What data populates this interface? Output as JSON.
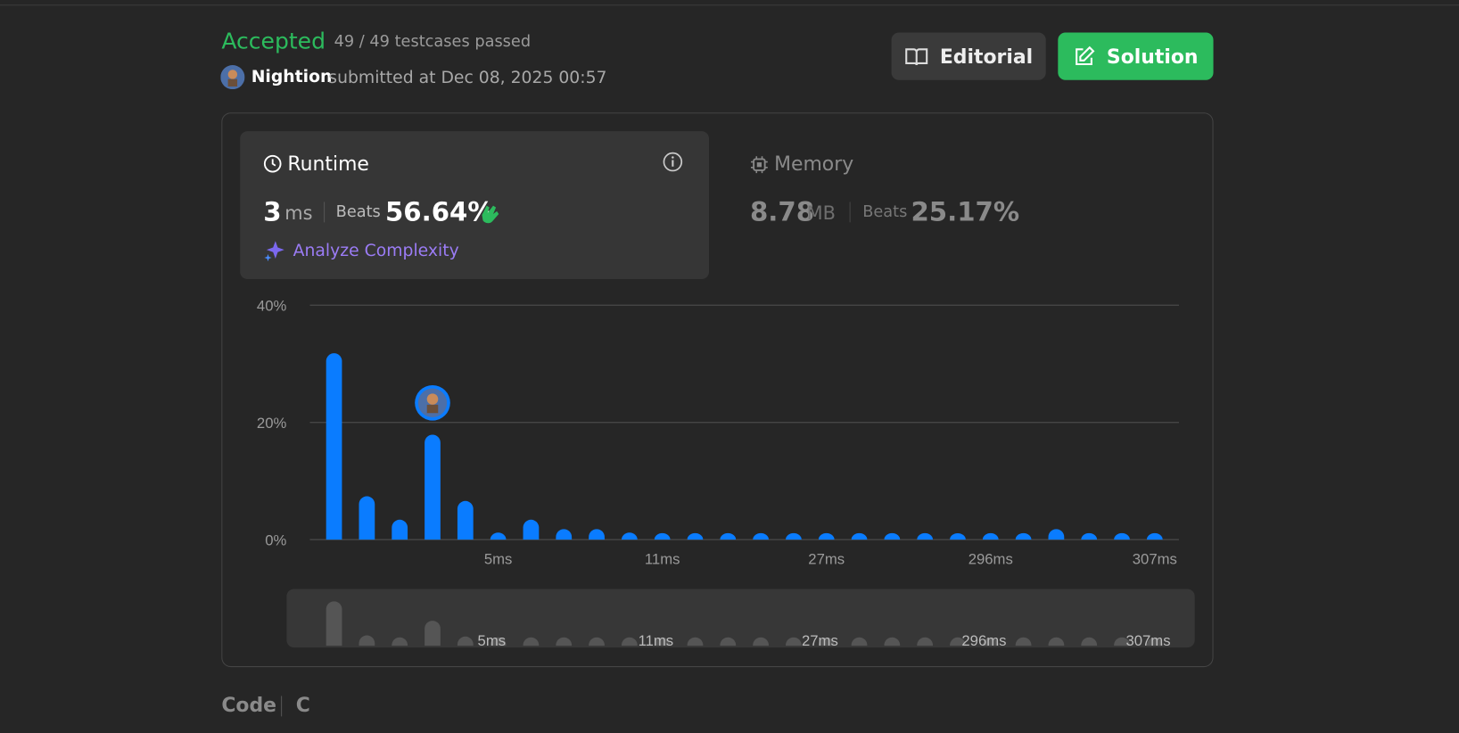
{
  "header": {
    "status": "Accepted",
    "testcases": "49 / 49 testcases passed",
    "user": "Nightion",
    "submitted": "submitted at Dec 08, 2025 00:57"
  },
  "buttons": {
    "editorial": "Editorial",
    "solution": "Solution"
  },
  "runtime": {
    "label": "Runtime",
    "value": "3",
    "unit": "ms",
    "beats_label": "Beats",
    "beats": "56.64%",
    "analyze": "Analyze Complexity"
  },
  "memory": {
    "label": "Memory",
    "value": "8.78",
    "unit": "MB",
    "beats_label": "Beats",
    "beats": "25.17%"
  },
  "chart_data": {
    "type": "bar",
    "categories": [
      null,
      null,
      null,
      null,
      null,
      "5ms",
      null,
      null,
      null,
      null,
      "11ms",
      null,
      null,
      null,
      null,
      "27ms",
      null,
      null,
      null,
      null,
      "296ms",
      null,
      null,
      null,
      null,
      "307ms"
    ],
    "values": [
      31.8,
      7.4,
      3.4,
      17.9,
      6.6,
      1.2,
      3.4,
      1.8,
      1.8,
      1.2,
      1.1,
      1.1,
      1.1,
      1.1,
      1.1,
      1.1,
      1.1,
      1.1,
      1.1,
      1.1,
      1.1,
      1.1,
      1.8,
      1.1,
      1.1,
      1.1
    ],
    "color": "#0a7cff",
    "ylim": [
      0,
      40
    ],
    "yticks": [
      {
        "value": 0,
        "label": "0%"
      },
      {
        "value": 20,
        "label": "20%"
      },
      {
        "value": 40,
        "label": "40%"
      }
    ],
    "grid": true
  },
  "code": {
    "label": "Code",
    "language": "C"
  }
}
